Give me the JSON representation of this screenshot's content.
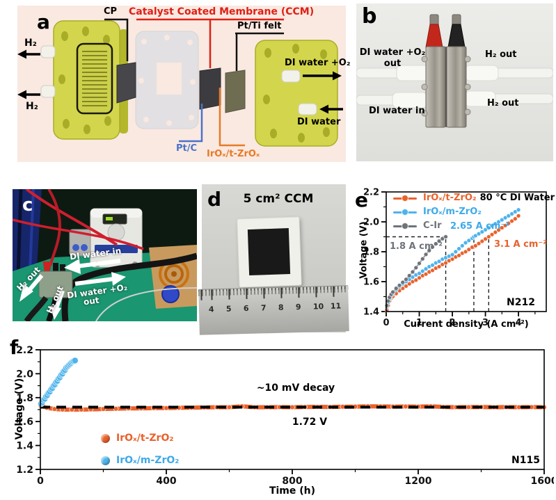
{
  "panel_a": {
    "label": "a",
    "cp_label": "CP",
    "ccm_label": "Catalyst Coated Membrane (CCM)",
    "pt_ti_felt_label": "Pt/Ti felt",
    "h2_top": "H₂",
    "h2_bottom": "H₂",
    "di_water_o2_label": "DI water +O₂",
    "di_water_label": "DI water",
    "pt_c_label": "Pt/C",
    "irox_label": "IrOₓ/t-ZrOₓ",
    "colors": {
      "ccm": "#e02015",
      "pt_c": "#4a73c9",
      "irox": "#e87a25"
    }
  },
  "panel_b": {
    "label": "b",
    "top_left_line1": "DI water +O₂",
    "top_left_line2": "out",
    "top_right": "H₂ out",
    "bottom_left": "DI water in",
    "bottom_right": "H₂ out"
  },
  "panel_c": {
    "label": "c",
    "di_water_in": "DI water in",
    "h2_out_1": "H₂ out",
    "h2_out_2": "H₂ out",
    "di_water_o2_line1": "DI water +O₂",
    "di_water_o2_line2": "out"
  },
  "panel_d": {
    "label": "d",
    "title": "5 cm² CCM",
    "ruler_numbers": [
      "4",
      "5",
      "6",
      "7",
      "8",
      "9",
      "10",
      "11"
    ]
  },
  "chart_data": [
    {
      "id": "e",
      "type": "line",
      "panel_label": "e",
      "xlabel": "Current density (A cm⁻²)",
      "ylabel": "Voltage (V)",
      "xlim": [
        0,
        4.84
      ],
      "ylim": [
        1.4,
        2.2
      ],
      "xticks": [
        0,
        1,
        2,
        3,
        4
      ],
      "xtick_labels": [
        "0",
        "1",
        "2",
        "3",
        "4"
      ],
      "yticks": [
        1.4,
        1.6,
        1.8,
        2.0,
        2.2
      ],
      "ytick_labels": [
        "1.4",
        "1.6",
        "1.8",
        "2.0",
        "2.2"
      ],
      "x_minor_step": 0.5,
      "y_minor_step": 0.1,
      "membrane_label": "N212",
      "legend_position": "top-left-inside",
      "guides": {
        "hline": {
          "y": 1.9,
          "x_from": 0,
          "x_to": 1.8
        },
        "vlines": [
          {
            "x": 1.8,
            "y_from": 1.4,
            "y_to": 1.9
          },
          {
            "x": 2.65,
            "y_from": 1.4,
            "y_to": 1.9
          },
          {
            "x": 3.1,
            "y_from": 1.4,
            "y_to": 1.9
          }
        ]
      },
      "annotations": {
        "c_ir_rate": "1.8 A cm⁻²",
        "m_zro2_rate": "2.65 A cm⁻²",
        "t_zro2_rate": "3.1 A cm⁻²"
      },
      "series": [
        {
          "name": "IrOₓ/t-ZrO₂",
          "extra_label": "80 °C DI Water",
          "color": "#e8622d",
          "points": [
            [
              0.02,
              1.41
            ],
            [
              0.06,
              1.44
            ],
            [
              0.1,
              1.47
            ],
            [
              0.15,
              1.49
            ],
            [
              0.2,
              1.5
            ],
            [
              0.3,
              1.52
            ],
            [
              0.4,
              1.54
            ],
            [
              0.5,
              1.555
            ],
            [
              0.6,
              1.57
            ],
            [
              0.7,
              1.585
            ],
            [
              0.8,
              1.6
            ],
            [
              0.9,
              1.61
            ],
            [
              1.0,
              1.625
            ],
            [
              1.1,
              1.64
            ],
            [
              1.2,
              1.65
            ],
            [
              1.3,
              1.665
            ],
            [
              1.4,
              1.675
            ],
            [
              1.5,
              1.69
            ],
            [
              1.6,
              1.7
            ],
            [
              1.7,
              1.715
            ],
            [
              1.8,
              1.725
            ],
            [
              1.9,
              1.74
            ],
            [
              2.0,
              1.75
            ],
            [
              2.1,
              1.765
            ],
            [
              2.2,
              1.775
            ],
            [
              2.3,
              1.79
            ],
            [
              2.4,
              1.8
            ],
            [
              2.5,
              1.815
            ],
            [
              2.6,
              1.83
            ],
            [
              2.7,
              1.84
            ],
            [
              2.8,
              1.855
            ],
            [
              2.9,
              1.87
            ],
            [
              3.0,
              1.885
            ],
            [
              3.1,
              1.9
            ],
            [
              3.2,
              1.915
            ],
            [
              3.3,
              1.93
            ],
            [
              3.4,
              1.945
            ],
            [
              3.5,
              1.96
            ],
            [
              3.6,
              1.975
            ],
            [
              3.7,
              1.99
            ],
            [
              3.8,
              2.005
            ],
            [
              3.9,
              2.02
            ],
            [
              4.0,
              2.04
            ]
          ]
        },
        {
          "name": "IrOₓ/m-ZrO₂",
          "color": "#4db3ec",
          "points": [
            [
              0.02,
              1.43
            ],
            [
              0.06,
              1.46
            ],
            [
              0.1,
              1.485
            ],
            [
              0.15,
              1.505
            ],
            [
              0.2,
              1.52
            ],
            [
              0.3,
              1.545
            ],
            [
              0.4,
              1.565
            ],
            [
              0.5,
              1.585
            ],
            [
              0.6,
              1.6
            ],
            [
              0.7,
              1.615
            ],
            [
              0.8,
              1.63
            ],
            [
              0.9,
              1.645
            ],
            [
              1.0,
              1.655
            ],
            [
              1.1,
              1.67
            ],
            [
              1.2,
              1.685
            ],
            [
              1.3,
              1.7
            ],
            [
              1.4,
              1.71
            ],
            [
              1.5,
              1.725
            ],
            [
              1.6,
              1.735
            ],
            [
              1.7,
              1.75
            ],
            [
              1.8,
              1.76
            ],
            [
              1.9,
              1.77
            ],
            [
              2.0,
              1.78
            ],
            [
              2.1,
              1.8
            ],
            [
              2.2,
              1.82
            ],
            [
              2.3,
              1.84
            ],
            [
              2.4,
              1.86
            ],
            [
              2.5,
              1.875
            ],
            [
              2.6,
              1.89
            ],
            [
              2.65,
              1.9
            ],
            [
              2.7,
              1.907
            ],
            [
              2.8,
              1.92
            ],
            [
              2.9,
              1.933
            ],
            [
              3.0,
              1.947
            ],
            [
              3.1,
              1.96
            ],
            [
              3.2,
              1.973
            ],
            [
              3.3,
              1.987
            ],
            [
              3.4,
              2.0
            ],
            [
              3.5,
              2.013
            ],
            [
              3.6,
              2.027
            ],
            [
              3.7,
              2.04
            ],
            [
              3.8,
              2.053
            ],
            [
              3.9,
              2.067
            ],
            [
              4.0,
              2.08
            ]
          ]
        },
        {
          "name": "C-Ir",
          "color": "#6e7379",
          "points": [
            [
              0.02,
              1.44
            ],
            [
              0.06,
              1.47
            ],
            [
              0.1,
              1.495
            ],
            [
              0.15,
              1.515
            ],
            [
              0.2,
              1.53
            ],
            [
              0.3,
              1.555
            ],
            [
              0.4,
              1.575
            ],
            [
              0.5,
              1.595
            ],
            [
              0.6,
              1.615
            ],
            [
              0.7,
              1.64
            ],
            [
              0.8,
              1.665
            ],
            [
              0.9,
              1.693
            ],
            [
              1.0,
              1.722
            ],
            [
              1.1,
              1.752
            ],
            [
              1.2,
              1.782
            ],
            [
              1.3,
              1.808
            ],
            [
              1.4,
              1.832
            ],
            [
              1.5,
              1.853
            ],
            [
              1.6,
              1.871
            ],
            [
              1.7,
              1.887
            ],
            [
              1.8,
              1.9
            ]
          ]
        }
      ]
    },
    {
      "id": "f",
      "type": "line",
      "panel_label": "f",
      "xlabel": "Time (h)",
      "ylabel": "Voltage (V)",
      "xlim": [
        0,
        1600
      ],
      "ylim": [
        1.2,
        2.2
      ],
      "xticks": [
        0,
        400,
        800,
        1200,
        1600
      ],
      "xtick_labels": [
        "0",
        "400",
        "800",
        "1200",
        "1600"
      ],
      "yticks": [
        1.2,
        1.4,
        1.6,
        1.8,
        2.0,
        2.2
      ],
      "ytick_labels": [
        "1.2",
        "1.4",
        "1.6",
        "1.8",
        "2.0",
        "2.2"
      ],
      "x_minor_step": 200,
      "y_minor_step": 0.1,
      "membrane_label": "N115",
      "dashed_line": {
        "y": 1.72,
        "x_from": 0,
        "x_to": 1600
      },
      "annotations": {
        "decay": "~10 mV decay",
        "voltage": "1.72 V"
      },
      "series": [
        {
          "name": "IrOₓ/t-ZrO₂",
          "color": "#e8622d",
          "points": [
            [
              0,
              1.735
            ],
            [
              20,
              1.715
            ],
            [
              45,
              1.705
            ],
            [
              70,
              1.7
            ],
            [
              100,
              1.7
            ],
            [
              130,
              1.7
            ],
            [
              160,
              1.702
            ],
            [
              200,
              1.705
            ],
            [
              240,
              1.707
            ],
            [
              280,
              1.71
            ],
            [
              320,
              1.71
            ],
            [
              360,
              1.712
            ],
            [
              400,
              1.713
            ],
            [
              440,
              1.715
            ],
            [
              480,
              1.716
            ],
            [
              520,
              1.718
            ],
            [
              560,
              1.72
            ],
            [
              600,
              1.72
            ],
            [
              640,
              1.728
            ],
            [
              680,
              1.72
            ],
            [
              720,
              1.72
            ],
            [
              760,
              1.721
            ],
            [
              800,
              1.72
            ],
            [
              840,
              1.722
            ],
            [
              880,
              1.723
            ],
            [
              920,
              1.722
            ],
            [
              960,
              1.724
            ],
            [
              1000,
              1.725
            ],
            [
              1040,
              1.728
            ],
            [
              1080,
              1.727
            ],
            [
              1120,
              1.725
            ],
            [
              1160,
              1.726
            ],
            [
              1200,
              1.725
            ],
            [
              1240,
              1.728
            ],
            [
              1280,
              1.722
            ],
            [
              1320,
              1.72
            ],
            [
              1360,
              1.721
            ],
            [
              1400,
              1.722
            ],
            [
              1440,
              1.72
            ],
            [
              1480,
              1.721
            ],
            [
              1520,
              1.72
            ],
            [
              1560,
              1.721
            ],
            [
              1600,
              1.72
            ]
          ]
        },
        {
          "name": "IrOₓ/m-ZrO₂",
          "color": "#4db3ec",
          "points": [
            [
              2,
              1.75
            ],
            [
              6,
              1.76
            ],
            [
              10,
              1.78
            ],
            [
              14,
              1.79
            ],
            [
              18,
              1.81
            ],
            [
              22,
              1.82
            ],
            [
              26,
              1.84
            ],
            [
              30,
              1.85
            ],
            [
              34,
              1.87
            ],
            [
              38,
              1.88
            ],
            [
              42,
              1.9
            ],
            [
              46,
              1.91
            ],
            [
              50,
              1.93
            ],
            [
              54,
              1.94
            ],
            [
              58,
              1.96
            ],
            [
              62,
              1.97
            ],
            [
              66,
              1.99
            ],
            [
              70,
              2.0
            ],
            [
              74,
              2.02
            ],
            [
              78,
              2.03
            ],
            [
              82,
              2.05
            ],
            [
              86,
              2.06
            ],
            [
              90,
              2.07
            ],
            [
              94,
              2.08
            ],
            [
              98,
              2.09
            ],
            [
              102,
              2.1
            ],
            [
              106,
              2.105
            ],
            [
              110,
              2.11
            ]
          ]
        }
      ]
    }
  ]
}
